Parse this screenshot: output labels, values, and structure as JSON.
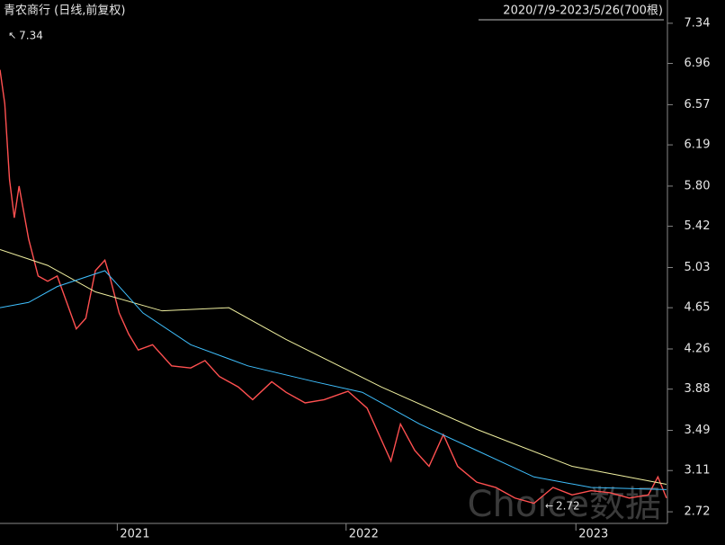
{
  "chart_data": {
    "type": "line",
    "title": "青农商行 (日线,前复权)",
    "subtitle": "2020/7/9-2023/5/26(700根)",
    "watermark": "Choice数据",
    "xlim": [
      0,
      700
    ],
    "xticks": [
      {
        "value": 123,
        "label": "2021"
      },
      {
        "value": 363,
        "label": "2022"
      },
      {
        "value": 604,
        "label": "2023"
      }
    ],
    "ylim": [
      2.61,
      7.56
    ],
    "yticks": [
      7.34,
      6.96,
      6.57,
      6.19,
      {
        "value": 5.8,
        "label": "5.80"
      },
      5.42,
      5.03,
      4.65,
      4.26,
      3.88,
      3.49,
      3.11,
      2.72
    ],
    "annotations": [
      {
        "label": "7.34",
        "value": 7.34,
        "x": 3
      },
      {
        "label": "2.72",
        "value": 2.72,
        "x": 566
      }
    ],
    "series": [
      {
        "color": "#ff5050",
        "x": [
          0,
          5,
          10,
          15,
          20,
          30,
          40,
          50,
          60,
          70,
          80,
          90,
          100,
          110,
          115,
          125,
          135,
          145,
          160,
          180,
          200,
          215,
          230,
          250,
          265,
          285,
          300,
          320,
          340,
          365,
          385,
          400,
          410,
          420,
          435,
          450,
          465,
          480,
          500,
          520,
          540,
          560,
          580,
          600,
          620,
          640,
          660,
          680,
          690,
          699
        ],
        "values": [
          6.9,
          6.58,
          5.86,
          5.5,
          5.8,
          5.3,
          4.95,
          4.9,
          4.95,
          4.7,
          4.45,
          4.55,
          5.0,
          5.1,
          4.95,
          4.6,
          4.4,
          4.25,
          4.3,
          4.1,
          4.08,
          4.15,
          4.0,
          3.9,
          3.78,
          3.95,
          3.85,
          3.75,
          3.78,
          3.86,
          3.7,
          3.4,
          3.2,
          3.55,
          3.3,
          3.15,
          3.45,
          3.15,
          3.0,
          2.95,
          2.85,
          2.8,
          2.95,
          2.88,
          2.92,
          2.9,
          2.85,
          2.88,
          3.05,
          2.85
        ]
      },
      {
        "color": "#f0f0a0",
        "x": [
          0,
          50,
          100,
          170,
          240,
          300,
          400,
          500,
          600,
          699
        ],
        "values": [
          5.2,
          5.05,
          4.8,
          4.62,
          4.65,
          4.35,
          3.9,
          3.5,
          3.15,
          2.98
        ]
      },
      {
        "color": "#3fc0ff",
        "x": [
          0,
          30,
          60,
          110,
          150,
          200,
          260,
          330,
          380,
          440,
          500,
          560,
          620,
          699
        ],
        "values": [
          4.65,
          4.7,
          4.85,
          5.0,
          4.6,
          4.3,
          4.1,
          3.95,
          3.85,
          3.55,
          3.3,
          3.05,
          2.95,
          2.93
        ]
      }
    ]
  }
}
